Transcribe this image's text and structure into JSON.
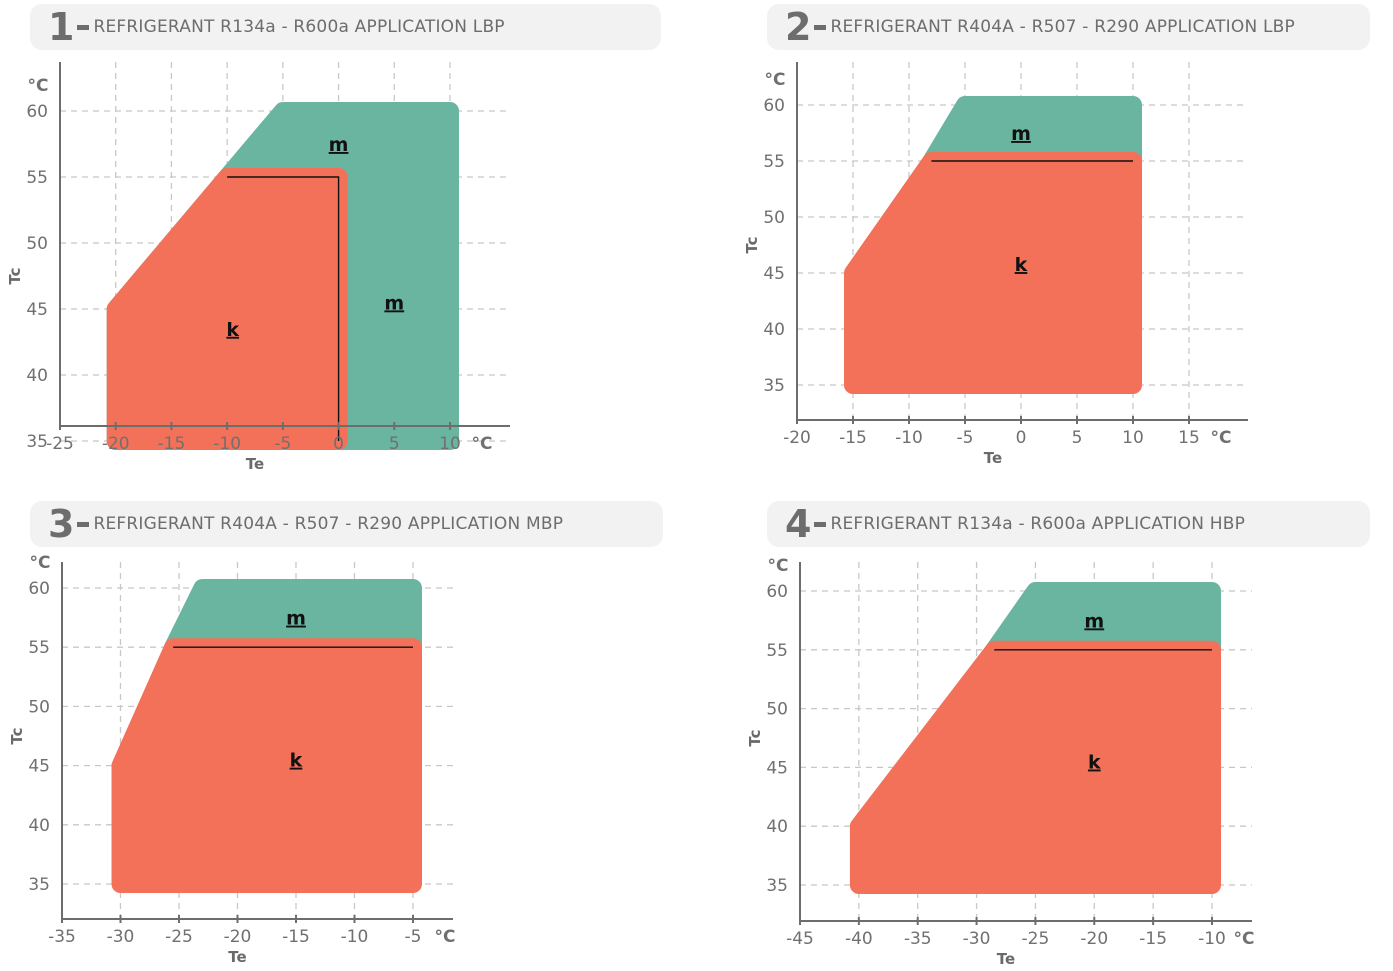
{
  "colors": {
    "k": "#f37159",
    "m": "#6ab59f",
    "grid": "#c8c8c8",
    "axis": "#6d6d6d",
    "header_bg": "#f2f2f2"
  },
  "units": {
    "x": "°C",
    "y": "°C"
  },
  "axis_titles": {
    "x": "Te",
    "y": "Tc"
  },
  "chart_data": [
    {
      "type": "area",
      "number": "1",
      "title": "REFRIGERANT R134a - R600a APPLICATION LBP",
      "xlabel": "Te",
      "ylabel": "Tc",
      "xunit": "°C",
      "yunit": "°C",
      "xlim": [
        -25,
        10
      ],
      "ylim": [
        32,
        60
      ],
      "xticks": [
        -25,
        -20,
        -15,
        -10,
        -5,
        0,
        5,
        10
      ],
      "yticks": [
        35,
        40,
        45,
        50,
        55,
        60
      ],
      "grid": true,
      "regions": [
        {
          "name": "m",
          "label": "m",
          "points": [
            [
              -10,
              55
            ],
            [
              -20,
              45
            ],
            [
              -20,
              35
            ],
            [
              10,
              35
            ],
            [
              10,
              60
            ],
            [
              -5,
              60
            ]
          ],
          "label_at": [
            0,
            57.5
          ]
        },
        {
          "name": "k",
          "label": "k",
          "points": [
            [
              -10,
              55
            ],
            [
              0,
              55
            ],
            [
              0,
              35
            ],
            [
              -20,
              35
            ],
            [
              -20,
              45
            ]
          ],
          "label_at": [
            -9.5,
            43.5
          ]
        }
      ],
      "extra_labels": [
        {
          "label": "m",
          "at": [
            5,
            45.5
          ]
        }
      ]
    },
    {
      "type": "area",
      "number": "2",
      "title": "REFRIGERANT R404A - R507 - R290 APPLICATION LBP",
      "xlabel": "Te",
      "ylabel": "Tc",
      "xunit": "°C",
      "yunit": "°C",
      "xlim": [
        -20,
        20
      ],
      "ylim": [
        32,
        60
      ],
      "xticks": [
        -20,
        -15,
        -10,
        -5,
        0,
        5,
        10,
        15
      ],
      "yticks": [
        35,
        40,
        45,
        50,
        55,
        60
      ],
      "grid": true,
      "regions": [
        {
          "name": "m",
          "label": "m",
          "points": [
            [
              -8,
              55
            ],
            [
              -5,
              60
            ],
            [
              10,
              60
            ],
            [
              10,
              55
            ]
          ],
          "label_at": [
            0,
            57.5
          ]
        },
        {
          "name": "k",
          "label": "k",
          "points": [
            [
              -8,
              55
            ],
            [
              10,
              55
            ],
            [
              10,
              35
            ],
            [
              -15,
              35
            ],
            [
              -15,
              45
            ]
          ],
          "label_at": [
            0,
            45.8
          ]
        }
      ],
      "extra_labels": []
    },
    {
      "type": "area",
      "number": "3",
      "title": "REFRIGERANT R404A - R507 - R290 APPLICATION MBP",
      "xlabel": "Te",
      "ylabel": "Tc",
      "xunit": "°C",
      "yunit": "°C",
      "xlim": [
        -35,
        -5
      ],
      "ylim": [
        32,
        60
      ],
      "xticks": [
        -35,
        -30,
        -25,
        -20,
        -15,
        -10,
        -5
      ],
      "yticks": [
        35,
        40,
        45,
        50,
        55,
        60
      ],
      "grid": true,
      "regions": [
        {
          "name": "m",
          "label": "m",
          "points": [
            [
              -25.5,
              55
            ],
            [
              -23,
              60
            ],
            [
              -5,
              60
            ],
            [
              -5,
              55
            ]
          ],
          "label_at": [
            -15,
            57.5
          ]
        },
        {
          "name": "k",
          "label": "k",
          "points": [
            [
              -25.5,
              55
            ],
            [
              -5,
              55
            ],
            [
              -5,
              35
            ],
            [
              -30,
              35
            ],
            [
              -30,
              45
            ]
          ],
          "label_at": [
            -15,
            45.5
          ]
        }
      ],
      "extra_labels": []
    },
    {
      "type": "area",
      "number": "4",
      "title": "REFRIGERANT R134a - R600a APPLICATION HBP",
      "xlabel": "Te",
      "ylabel": "Tc",
      "xunit": "°C",
      "yunit": "°C",
      "xlim": [
        -45,
        -10
      ],
      "ylim": [
        32,
        60
      ],
      "xticks": [
        -45,
        -40,
        -35,
        -30,
        -25,
        -20,
        -15,
        -10
      ],
      "yticks": [
        35,
        40,
        45,
        50,
        55,
        60
      ],
      "grid": true,
      "regions": [
        {
          "name": "m",
          "label": "m",
          "points": [
            [
              -28.5,
              55
            ],
            [
              -25,
              60
            ],
            [
              -10,
              60
            ],
            [
              -10,
              55
            ]
          ],
          "label_at": [
            -20,
            57.5
          ]
        },
        {
          "name": "k",
          "label": "k",
          "points": [
            [
              -28.5,
              55
            ],
            [
              -10,
              55
            ],
            [
              -10,
              35
            ],
            [
              -40,
              35
            ],
            [
              -40,
              40
            ]
          ],
          "label_at": [
            -20,
            45.5
          ]
        }
      ],
      "extra_labels": []
    }
  ]
}
